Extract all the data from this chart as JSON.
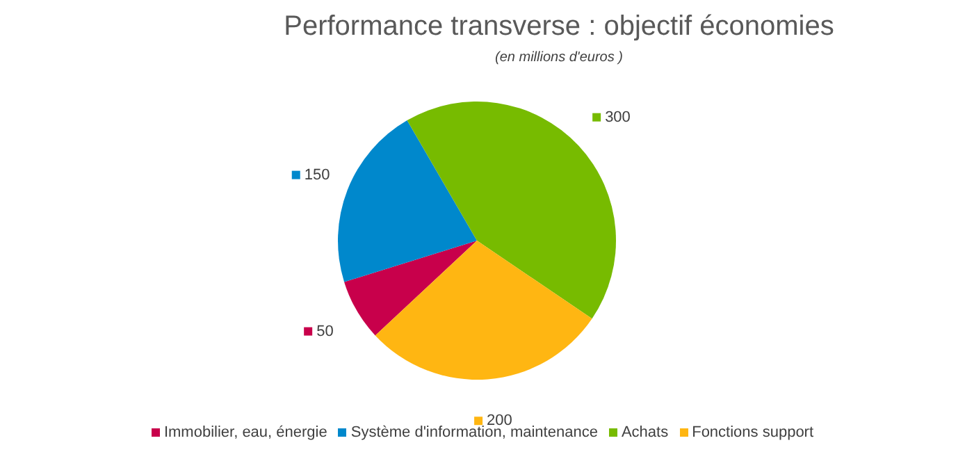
{
  "chart_data": {
    "type": "pie",
    "title": "Performance transverse : objectif économies",
    "subtitle": "(en millions d'euros )",
    "categories": [
      "Immobilier, eau, énergie",
      "Système d'information, maintenance",
      "Achats",
      "Fonctions support"
    ],
    "values": [
      50,
      150,
      300,
      200
    ],
    "colors": [
      "#c8004b",
      "#0088cc",
      "#77bb00",
      "#ffb612"
    ],
    "data_labels": true,
    "legend": "bottom"
  }
}
